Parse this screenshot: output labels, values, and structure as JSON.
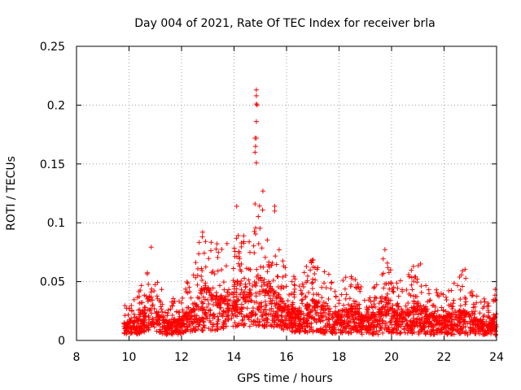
{
  "chart_data": {
    "type": "scatter",
    "title": "Day 004 of 2021, Rate Of TEC Index for receiver brla",
    "xlabel": "GPS time / hours",
    "ylabel": "ROTI / TECUs",
    "xlim": [
      8,
      24
    ],
    "ylim": [
      0,
      0.25
    ],
    "grid": true,
    "marker": "+",
    "series_color": "#ff0000",
    "x_ticks": [
      8,
      10,
      12,
      14,
      16,
      18,
      20,
      22,
      24
    ],
    "x_tick_labels": [
      "8",
      "10",
      "12",
      "14",
      "16",
      "18",
      "20",
      "22",
      "24"
    ],
    "y_ticks": [
      0,
      0.05,
      0.1,
      0.15,
      0.2,
      0.25
    ],
    "y_tick_labels": [
      "0",
      "0.05",
      "0.1",
      "0.15",
      "0.2",
      "0.25"
    ],
    "envelope": [
      {
        "x": 9.8,
        "lo": 0.005,
        "hi": 0.03
      },
      {
        "x": 10.2,
        "lo": 0.005,
        "hi": 0.035
      },
      {
        "x": 10.6,
        "lo": 0.006,
        "hi": 0.06
      },
      {
        "x": 10.8,
        "lo": 0.008,
        "hi": 0.09
      },
      {
        "x": 11.0,
        "lo": 0.006,
        "hi": 0.055
      },
      {
        "x": 11.5,
        "lo": 0.004,
        "hi": 0.035
      },
      {
        "x": 12.0,
        "lo": 0.005,
        "hi": 0.04
      },
      {
        "x": 12.5,
        "lo": 0.006,
        "hi": 0.065
      },
      {
        "x": 12.8,
        "lo": 0.008,
        "hi": 0.1
      },
      {
        "x": 13.2,
        "lo": 0.008,
        "hi": 0.09
      },
      {
        "x": 13.6,
        "lo": 0.01,
        "hi": 0.075
      },
      {
        "x": 14.1,
        "lo": 0.012,
        "hi": 0.11
      },
      {
        "x": 14.5,
        "lo": 0.012,
        "hi": 0.08
      },
      {
        "x": 15.0,
        "lo": 0.012,
        "hi": 0.12
      },
      {
        "x": 15.5,
        "lo": 0.01,
        "hi": 0.095
      },
      {
        "x": 16.0,
        "lo": 0.008,
        "hi": 0.06
      },
      {
        "x": 16.5,
        "lo": 0.006,
        "hi": 0.055
      },
      {
        "x": 17.0,
        "lo": 0.006,
        "hi": 0.075
      },
      {
        "x": 17.5,
        "lo": 0.006,
        "hi": 0.06
      },
      {
        "x": 18.0,
        "lo": 0.006,
        "hi": 0.05
      },
      {
        "x": 18.5,
        "lo": 0.006,
        "hi": 0.06
      },
      {
        "x": 19.0,
        "lo": 0.005,
        "hi": 0.04
      },
      {
        "x": 19.5,
        "lo": 0.005,
        "hi": 0.05
      },
      {
        "x": 19.8,
        "lo": 0.006,
        "hi": 0.083
      },
      {
        "x": 20.2,
        "lo": 0.005,
        "hi": 0.05
      },
      {
        "x": 20.6,
        "lo": 0.005,
        "hi": 0.055
      },
      {
        "x": 21.0,
        "lo": 0.005,
        "hi": 0.072
      },
      {
        "x": 21.5,
        "lo": 0.005,
        "hi": 0.045
      },
      {
        "x": 22.0,
        "lo": 0.005,
        "hi": 0.042
      },
      {
        "x": 22.5,
        "lo": 0.005,
        "hi": 0.055
      },
      {
        "x": 22.8,
        "lo": 0.005,
        "hi": 0.062
      },
      {
        "x": 23.2,
        "lo": 0.004,
        "hi": 0.04
      },
      {
        "x": 23.6,
        "lo": 0.004,
        "hi": 0.035
      },
      {
        "x": 24.0,
        "lo": 0.004,
        "hi": 0.045
      }
    ],
    "highlights": [
      {
        "x": 14.85,
        "y": 0.213
      },
      {
        "x": 14.85,
        "y": 0.208
      },
      {
        "x": 14.85,
        "y": 0.201
      },
      {
        "x": 14.88,
        "y": 0.2
      },
      {
        "x": 14.85,
        "y": 0.186
      },
      {
        "x": 14.8,
        "y": 0.172
      },
      {
        "x": 14.85,
        "y": 0.172
      },
      {
        "x": 14.82,
        "y": 0.165
      },
      {
        "x": 14.8,
        "y": 0.16
      },
      {
        "x": 14.85,
        "y": 0.151
      },
      {
        "x": 15.1,
        "y": 0.127
      },
      {
        "x": 15.55,
        "y": 0.114
      },
      {
        "x": 15.55,
        "y": 0.11
      },
      {
        "x": 14.1,
        "y": 0.114
      },
      {
        "x": 14.8,
        "y": 0.116
      }
    ]
  }
}
